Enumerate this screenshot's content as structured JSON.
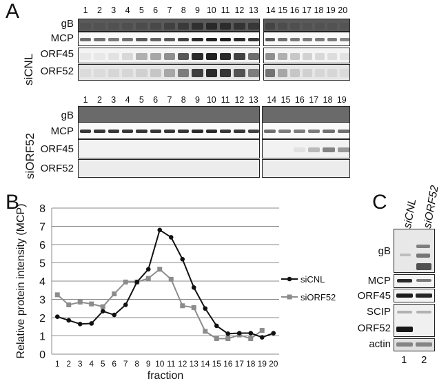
{
  "panels": {
    "A": "A",
    "B": "B",
    "C": "C"
  },
  "sicnl_blot": {
    "condition": "siCNL",
    "lanes_left": [
      "1",
      "2",
      "3",
      "4",
      "5",
      "6",
      "7",
      "8",
      "9",
      "10",
      "11",
      "12",
      "13"
    ],
    "lanes_right": [
      "14",
      "15",
      "16",
      "17",
      "18",
      "19",
      "20"
    ],
    "rows": [
      "gB",
      "MCP",
      "ORF45",
      "ORF52"
    ]
  },
  "siorf52_blot": {
    "condition": "siORF52",
    "lanes_left": [
      "1",
      "2",
      "3",
      "4",
      "5",
      "6",
      "7",
      "8",
      "9",
      "10",
      "11",
      "12",
      "13"
    ],
    "lanes_right": [
      "14",
      "15",
      "16",
      "17",
      "18",
      "19"
    ],
    "rows": [
      "gB",
      "MCP",
      "ORF45",
      "ORF52"
    ]
  },
  "panel_c": {
    "columns": [
      "siCNL",
      "siORF52"
    ],
    "rows": [
      "gB",
      "MCP",
      "ORF45",
      "SCIP",
      "ORF52",
      "actin"
    ],
    "lane_numbers": [
      "1",
      "2"
    ]
  },
  "chart_data": {
    "type": "line",
    "xlabel": "fraction",
    "ylabel": "Relative protein intensity (MCP)",
    "x": [
      1,
      2,
      3,
      4,
      5,
      6,
      7,
      8,
      9,
      10,
      11,
      12,
      13,
      14,
      15,
      16,
      17,
      18,
      19,
      20
    ],
    "ylim": [
      0,
      8
    ],
    "yticks": [
      0,
      1,
      2,
      3,
      4,
      5,
      6,
      7,
      8
    ],
    "grid": true,
    "legend": "right",
    "series": [
      {
        "name": "siCNL",
        "marker": "circle",
        "color": "#111111",
        "x": [
          1,
          2,
          3,
          4,
          5,
          6,
          7,
          8,
          9,
          10,
          11,
          12,
          13,
          14,
          15,
          16,
          17,
          18,
          19,
          20
        ],
        "values": [
          2.05,
          1.85,
          1.65,
          1.68,
          2.35,
          2.15,
          2.7,
          3.95,
          4.65,
          6.8,
          6.4,
          5.2,
          3.65,
          2.5,
          1.55,
          1.12,
          1.15,
          1.15,
          0.92,
          1.15
        ]
      },
      {
        "name": "siORF52",
        "marker": "square",
        "color": "#8c8c8c",
        "x": [
          1,
          2,
          3,
          4,
          5,
          6,
          7,
          8,
          9,
          10,
          11,
          12,
          13,
          14,
          15,
          16,
          17,
          18,
          19
        ],
        "values": [
          3.25,
          2.7,
          2.85,
          2.75,
          2.6,
          3.3,
          3.95,
          3.95,
          4.15,
          4.65,
          4.1,
          2.65,
          2.55,
          1.25,
          0.85,
          0.85,
          1.05,
          0.85,
          1.3
        ]
      }
    ]
  }
}
